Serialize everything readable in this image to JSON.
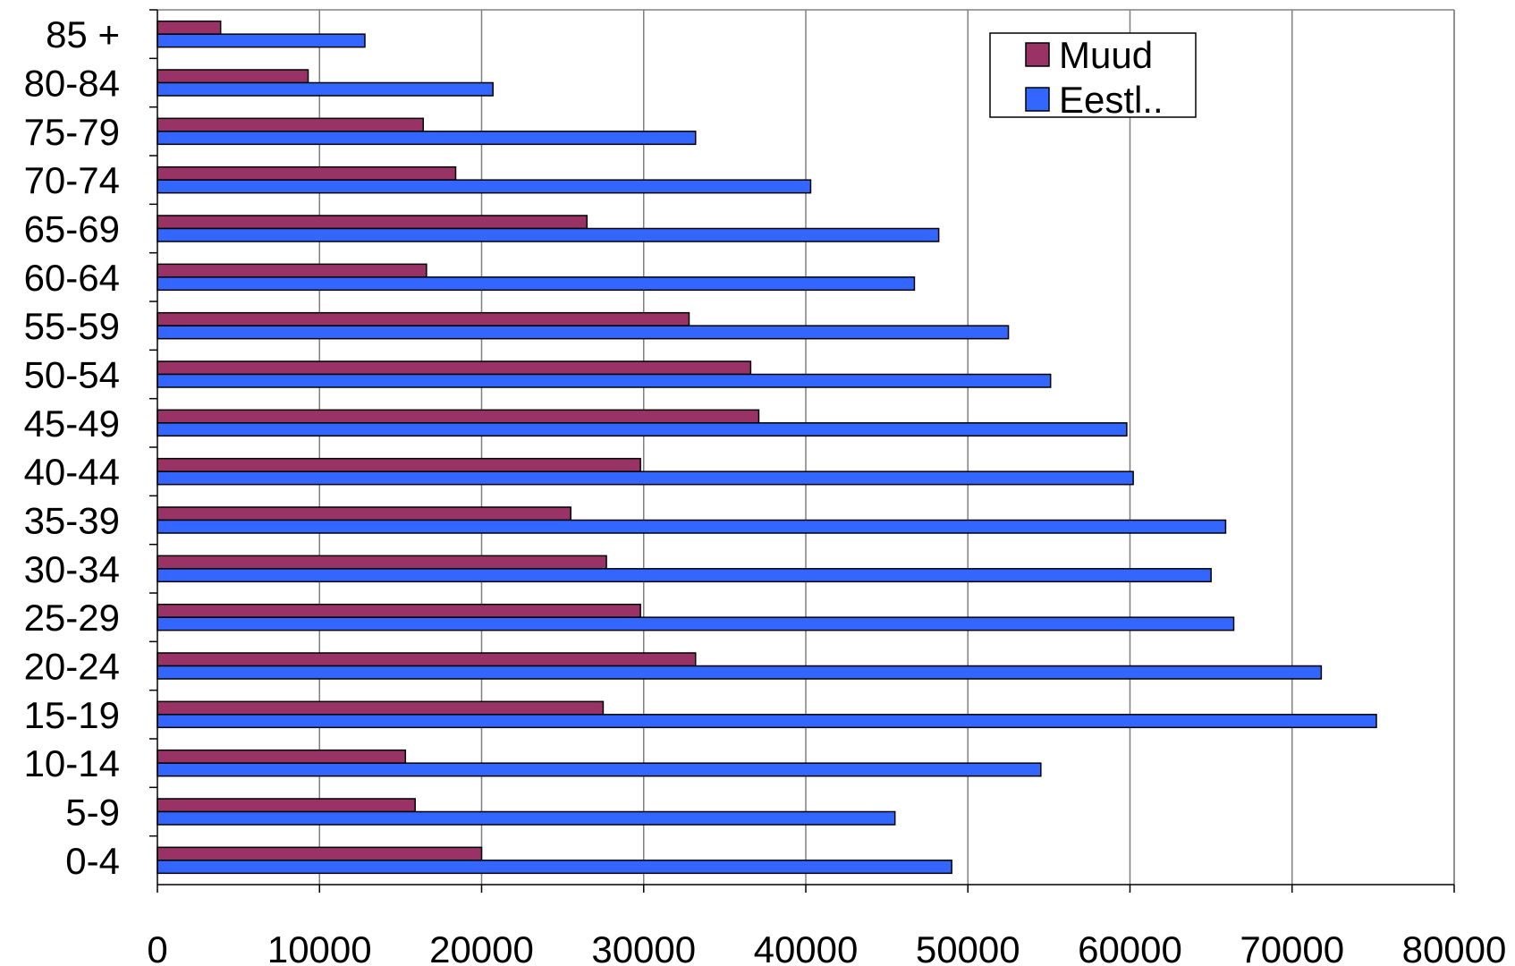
{
  "chart_data": {
    "type": "bar",
    "orientation": "horizontal",
    "categories": [
      "0-4",
      "5-9",
      "10-14",
      "15-19",
      "20-24",
      "25-29",
      "30-34",
      "35-39",
      "40-44",
      "45-49",
      "50-54",
      "55-59",
      "60-64",
      "65-69",
      "70-74",
      "75-79",
      "80-84",
      "85 +"
    ],
    "series": [
      {
        "name": "Muud",
        "color": "#993366",
        "values": [
          20000,
          15900,
          15300,
          27500,
          33200,
          29800,
          27700,
          25500,
          29800,
          37100,
          36600,
          32800,
          16600,
          26500,
          18400,
          16400,
          9300,
          3900
        ]
      },
      {
        "name": "Eestl..",
        "color": "#3366ff",
        "values": [
          49000,
          45500,
          54500,
          75200,
          71800,
          66400,
          65000,
          65900,
          60200,
          59800,
          55100,
          52500,
          46700,
          48200,
          40300,
          33200,
          20700,
          12800
        ]
      }
    ],
    "x_ticks": [
      "0",
      "10000",
      "20000",
      "30000",
      "40000",
      "50000",
      "60000",
      "70000",
      "80000"
    ],
    "xlim": [
      0,
      80000
    ],
    "title": "",
    "xlabel": "",
    "ylabel": "",
    "grid": "vertical",
    "legend_position": "top-right"
  }
}
